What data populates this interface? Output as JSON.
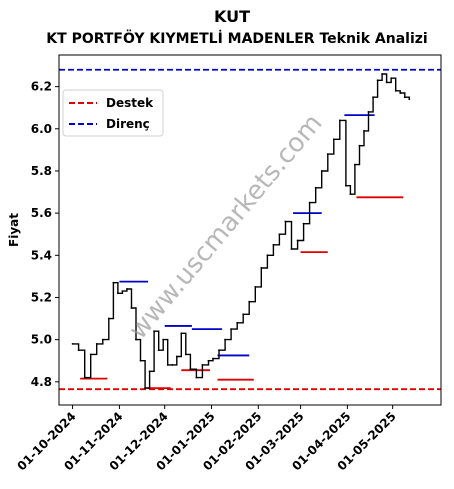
{
  "chart_data": {
    "type": "line",
    "title": "KUT",
    "subtitle": "KT PORTFÖY KIYMETLİ MADENLER Teknik Analizi",
    "ylabel": "Fiyat",
    "xlabel": "",
    "ylim": [
      4.77,
      6.3
    ],
    "y_ticks": [
      4.8,
      5.0,
      5.2,
      5.4,
      5.6,
      5.8,
      6.0,
      6.2
    ],
    "x_ticks": [
      "01-10-2024",
      "01-11-2024",
      "01-12-2024",
      "01-01-2025",
      "01-02-2025",
      "01-03-2025",
      "01-04-2025",
      "01-05-2025"
    ],
    "watermark": "www.uscmarkets.com",
    "legend": [
      {
        "label": "Destek",
        "color": "#dd0000"
      },
      {
        "label": "Direnç",
        "color": "#0000cc"
      }
    ],
    "legend_position": "upper-left",
    "series": [
      {
        "color": "#000000",
        "x": [
          "2024-10-01",
          "2024-10-05",
          "2024-10-09",
          "2024-10-13",
          "2024-10-17",
          "2024-10-21",
          "2024-10-25",
          "2024-10-28",
          "2024-10-31",
          "2024-11-03",
          "2024-11-06",
          "2024-11-09",
          "2024-11-12",
          "2024-11-15",
          "2024-11-18",
          "2024-11-21",
          "2024-11-24",
          "2024-11-27",
          "2024-11-30",
          "2024-12-03",
          "2024-12-06",
          "2024-12-09",
          "2024-12-12",
          "2024-12-15",
          "2024-12-18",
          "2024-12-22",
          "2024-12-26",
          "2024-12-30",
          "2025-01-02",
          "2025-01-06",
          "2025-01-10",
          "2025-01-14",
          "2025-01-18",
          "2025-01-22",
          "2025-01-26",
          "2025-01-30",
          "2025-02-03",
          "2025-02-07",
          "2025-02-11",
          "2025-02-15",
          "2025-02-19",
          "2025-02-23",
          "2025-02-27",
          "2025-03-03",
          "2025-03-07",
          "2025-03-11",
          "2025-03-15",
          "2025-03-19",
          "2025-03-23",
          "2025-03-27",
          "2025-03-31",
          "2025-04-03",
          "2025-04-06",
          "2025-04-09",
          "2025-04-12",
          "2025-04-15",
          "2025-04-18",
          "2025-04-21",
          "2025-04-24",
          "2025-04-27",
          "2025-04-30",
          "2025-05-03",
          "2025-05-06",
          "2025-05-09",
          "2025-05-12"
        ],
        "values": [
          4.98,
          4.95,
          4.82,
          4.93,
          4.98,
          5.0,
          5.1,
          5.27,
          5.22,
          5.23,
          5.24,
          5.15,
          5.0,
          4.9,
          4.77,
          4.85,
          5.04,
          4.95,
          5.0,
          4.88,
          4.88,
          4.92,
          5.03,
          4.93,
          4.86,
          4.82,
          4.88,
          4.9,
          4.91,
          4.95,
          5.0,
          5.05,
          5.08,
          5.12,
          5.18,
          5.25,
          5.34,
          5.4,
          5.45,
          5.5,
          5.56,
          5.43,
          5.47,
          5.55,
          5.65,
          5.72,
          5.8,
          5.88,
          5.95,
          6.04,
          5.73,
          5.69,
          5.83,
          5.92,
          5.99,
          6.08,
          6.15,
          6.23,
          6.26,
          6.22,
          6.24,
          6.18,
          6.17,
          6.15,
          6.14
        ]
      }
    ],
    "support_levels": [
      {
        "value": 4.815,
        "x_start": "2024-10-06",
        "x_end": "2024-10-24"
      },
      {
        "value": 4.77,
        "x_start": "2024-11-19",
        "x_end": "2024-12-05"
      },
      {
        "value": 4.855,
        "x_start": "2024-12-12",
        "x_end": "2024-12-31"
      },
      {
        "value": 4.81,
        "x_start": "2025-01-05",
        "x_end": "2025-01-29"
      },
      {
        "value": 5.415,
        "x_start": "2025-03-01",
        "x_end": "2025-03-19"
      },
      {
        "value": 5.675,
        "x_start": "2025-04-07",
        "x_end": "2025-05-08"
      },
      {
        "value": 4.765,
        "x_start": "2024-09-22",
        "x_end": "2025-06-02",
        "full": true
      }
    ],
    "resistance_levels": [
      {
        "value": 5.275,
        "x_start": "2024-11-01",
        "x_end": "2024-11-20"
      },
      {
        "value": 5.065,
        "x_start": "2024-12-01",
        "x_end": "2024-12-19"
      },
      {
        "value": 5.05,
        "x_start": "2024-12-19",
        "x_end": "2025-01-08"
      },
      {
        "value": 4.925,
        "x_start": "2025-01-05",
        "x_end": "2025-01-26"
      },
      {
        "value": 5.6,
        "x_start": "2025-02-24",
        "x_end": "2025-03-15"
      },
      {
        "value": 6.065,
        "x_start": "2025-03-30",
        "x_end": "2025-04-19"
      },
      {
        "value": 6.28,
        "x_start": "2024-09-22",
        "x_end": "2025-06-02",
        "full": true
      }
    ]
  }
}
